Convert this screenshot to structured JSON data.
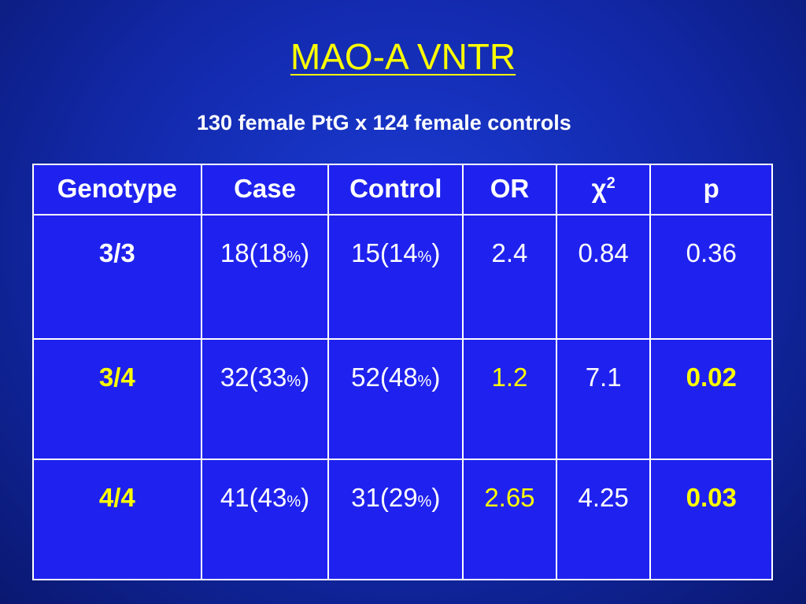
{
  "slide": {
    "title": "MAO-A VNTR",
    "subtitle": "130 female PtG x 124 female controls"
  },
  "table": {
    "headers": {
      "genotype": "Genotype",
      "case": "Case",
      "control": "Control",
      "or": "OR",
      "chi": "χ",
      "chi_sup": "2",
      "p": "p"
    },
    "rows": [
      {
        "genotype": "3/3",
        "case_n": "18(18",
        "case_pct": "%",
        "case_close": ")",
        "control_n": "15(14",
        "control_pct": "%",
        "control_close": ")",
        "or": "2.4",
        "chi2": "0.84",
        "p": "0.36"
      },
      {
        "genotype": "3/4",
        "case_n": "32(33",
        "case_pct": "%",
        "case_close": ")",
        "control_n": "52(48",
        "control_pct": "%",
        "control_close": ")",
        "or": "1.2",
        "chi2": "7.1",
        "p": "0.02"
      },
      {
        "genotype": "4/4",
        "case_n": "41(43",
        "case_pct": "%",
        "case_close": ")",
        "control_n": "31(29",
        "control_pct": "%",
        "control_close": ")",
        "or": "2.65",
        "chi2": "4.25",
        "p": "0.03"
      }
    ]
  },
  "colors": {
    "background": "#1228a8",
    "table_fill": "#1f22ee",
    "highlight": "#ffff00",
    "text": "#ffffff"
  }
}
